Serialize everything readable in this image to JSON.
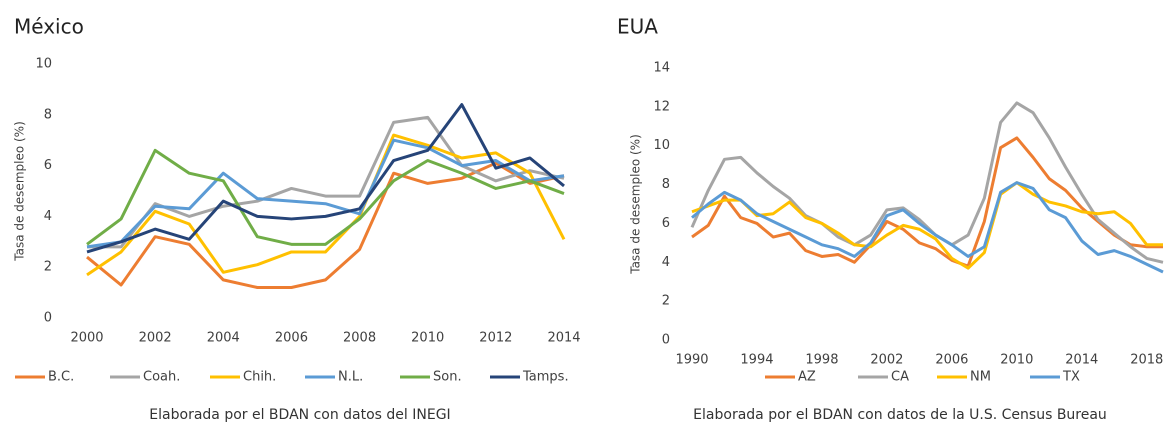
{
  "chart_data": [
    {
      "type": "line",
      "title": "México",
      "y_label": "Tasa de desempleo (%)",
      "caption": "Elaborada por el BDAN con datos del INEGI",
      "x": [
        2000,
        2001,
        2002,
        2003,
        2004,
        2005,
        2006,
        2007,
        2008,
        2009,
        2010,
        2011,
        2012,
        2013,
        2014
      ],
      "xlim": [
        2000,
        2014
      ],
      "xticks": [
        2000,
        2002,
        2004,
        2006,
        2008,
        2010,
        2012,
        2014
      ],
      "ylim": [
        0,
        10
      ],
      "yticks": [
        0,
        2,
        4,
        6,
        8,
        10
      ],
      "grid": false,
      "series": [
        {
          "name": "B.C.",
          "color": "#ed7d31",
          "values": [
            2.4,
            1.3,
            3.2,
            2.9,
            1.5,
            1.2,
            1.2,
            1.5,
            2.7,
            5.7,
            5.3,
            5.5,
            6.1,
            5.3,
            5.6
          ]
        },
        {
          "name": "Coah.",
          "color": "#a5a5a5",
          "values": [
            2.8,
            2.8,
            4.5,
            4.0,
            4.4,
            4.6,
            5.1,
            4.8,
            4.8,
            7.7,
            7.9,
            6.0,
            5.4,
            5.8,
            5.5
          ]
        },
        {
          "name": "Chih.",
          "color": "#ffc000",
          "values": [
            1.7,
            2.6,
            4.2,
            3.7,
            1.8,
            2.1,
            2.6,
            2.6,
            4.0,
            7.2,
            6.8,
            6.3,
            6.5,
            5.7,
            3.1
          ]
        },
        {
          "name": "N.L.",
          "color": "#5b9bd5",
          "values": [
            2.8,
            3.0,
            4.4,
            4.3,
            5.7,
            4.7,
            4.6,
            4.5,
            4.1,
            7.0,
            6.7,
            6.0,
            6.2,
            5.4,
            5.6
          ]
        },
        {
          "name": "Son.",
          "color": "#70ad47",
          "values": [
            2.9,
            3.9,
            6.6,
            5.7,
            5.4,
            3.2,
            2.9,
            2.9,
            3.9,
            5.4,
            6.2,
            5.7,
            5.1,
            5.4,
            4.9
          ]
        },
        {
          "name": "Tamps.",
          "color": "#264478",
          "values": [
            2.6,
            3.0,
            3.5,
            3.1,
            4.6,
            4.0,
            3.9,
            4.0,
            4.3,
            6.2,
            6.6,
            8.4,
            5.9,
            6.3,
            5.2
          ]
        }
      ]
    },
    {
      "type": "line",
      "title": "EUA",
      "y_label": "Tasa de desempleo (%)",
      "caption": "Elaborada por el BDAN con datos de la U.S. Census Bureau",
      "x": [
        1990,
        1991,
        1992,
        1993,
        1994,
        1995,
        1996,
        1997,
        1998,
        1999,
        2000,
        2001,
        2002,
        2003,
        2004,
        2005,
        2006,
        2007,
        2008,
        2009,
        2010,
        2011,
        2012,
        2013,
        2014,
        2015,
        2016,
        2017,
        2018,
        2019
      ],
      "xlim": [
        1990,
        2019
      ],
      "xticks": [
        1990,
        1994,
        1998,
        2002,
        2006,
        2010,
        2014,
        2018
      ],
      "ylim": [
        0,
        14
      ],
      "yticks": [
        0,
        2,
        4,
        6,
        8,
        10,
        12,
        14
      ],
      "grid": false,
      "series": [
        {
          "name": "AZ",
          "color": "#ed7d31",
          "values": [
            5.3,
            5.9,
            7.4,
            6.3,
            6.0,
            5.3,
            5.5,
            4.6,
            4.3,
            4.4,
            4.0,
            4.9,
            6.1,
            5.7,
            5.0,
            4.7,
            4.1,
            3.8,
            6.1,
            9.9,
            10.4,
            9.4,
            8.3,
            7.7,
            6.8,
            6.1,
            5.4,
            4.9,
            4.8,
            4.8
          ]
        },
        {
          "name": "CA",
          "color": "#a5a5a5",
          "values": [
            5.8,
            7.7,
            9.3,
            9.4,
            8.6,
            7.9,
            7.3,
            6.4,
            6.0,
            5.3,
            4.9,
            5.4,
            6.7,
            6.8,
            6.2,
            5.4,
            4.9,
            5.4,
            7.3,
            11.2,
            12.2,
            11.7,
            10.4,
            8.9,
            7.5,
            6.2,
            5.5,
            4.8,
            4.2,
            4.0
          ]
        },
        {
          "name": "NM",
          "color": "#ffc000",
          "values": [
            6.6,
            6.9,
            7.2,
            7.2,
            6.4,
            6.5,
            7.1,
            6.3,
            6.0,
            5.5,
            4.9,
            4.8,
            5.4,
            5.9,
            5.7,
            5.2,
            4.2,
            3.7,
            4.5,
            7.5,
            8.1,
            7.5,
            7.1,
            6.9,
            6.6,
            6.5,
            6.6,
            6.0,
            4.9,
            4.9
          ]
        },
        {
          "name": "TX",
          "color": "#5b9bd5",
          "values": [
            6.3,
            7.0,
            7.6,
            7.2,
            6.5,
            6.1,
            5.7,
            5.3,
            4.9,
            4.7,
            4.3,
            5.0,
            6.4,
            6.7,
            6.0,
            5.4,
            4.9,
            4.3,
            4.8,
            7.6,
            8.1,
            7.8,
            6.7,
            6.3,
            5.1,
            4.4,
            4.6,
            4.3,
            3.9,
            3.5
          ]
        }
      ]
    }
  ]
}
